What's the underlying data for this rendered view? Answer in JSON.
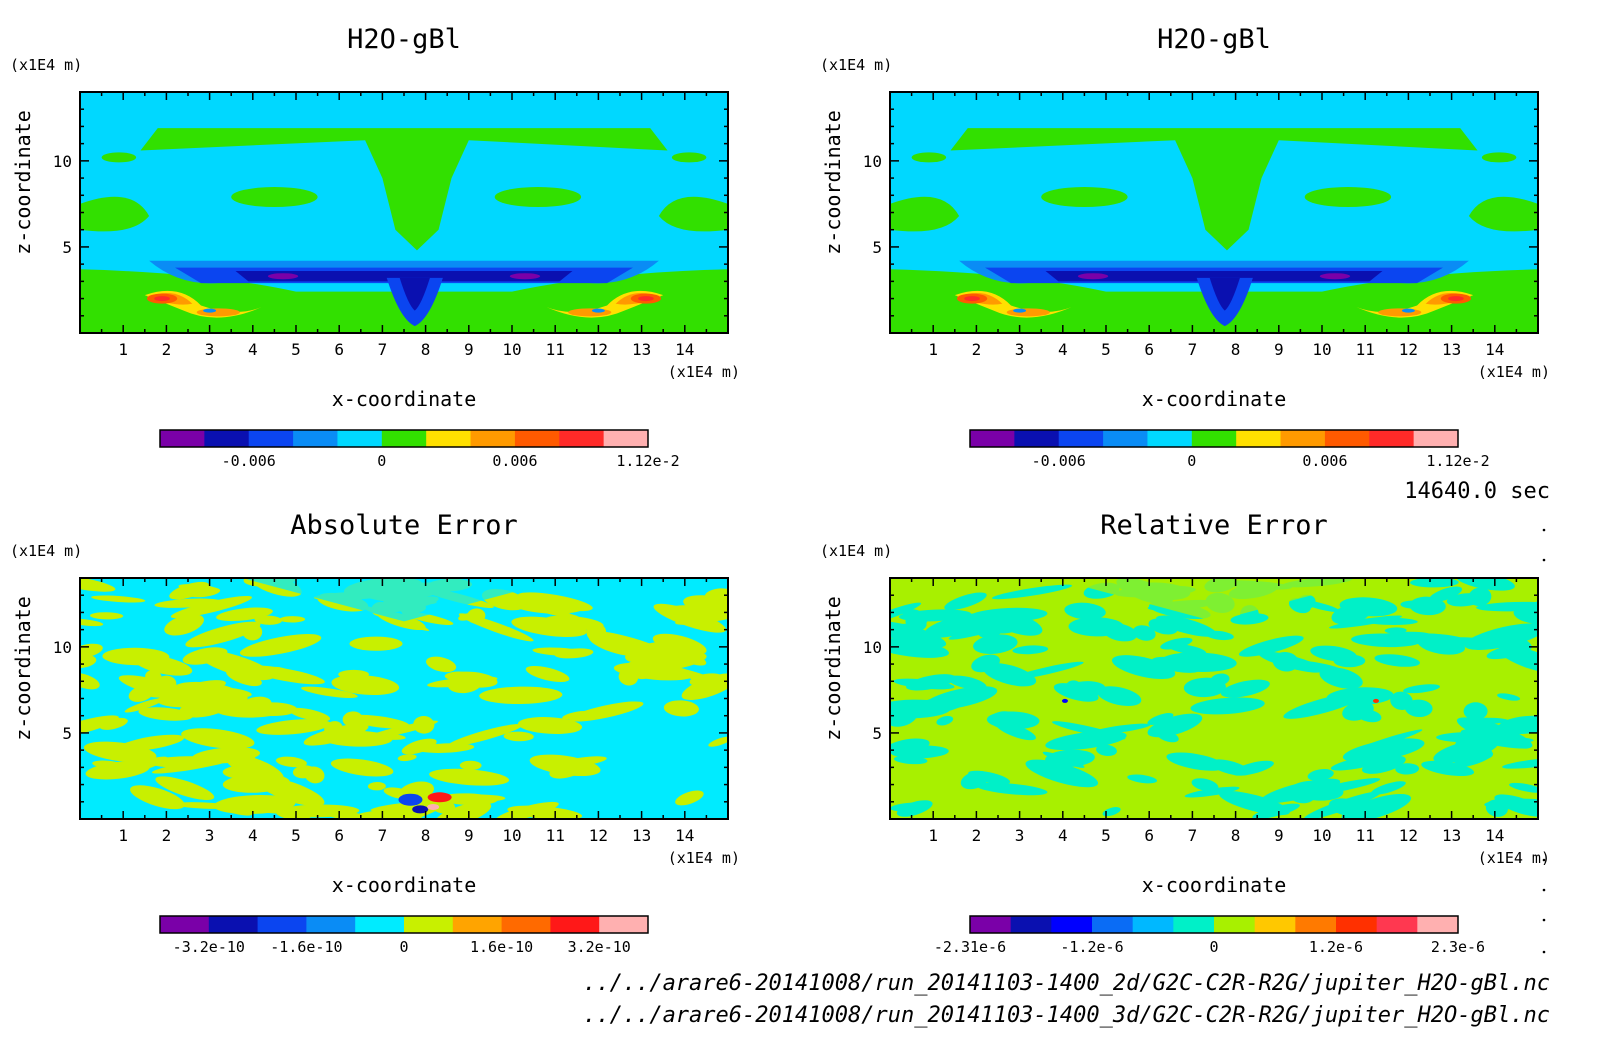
{
  "figure": {
    "time_label": "14640.0 sec",
    "source_files": [
      "../../arare6-20141008/run_20141103-1400_2d/G2C-C2R-R2G/jupiter_H2O-gBl.nc",
      "../../arare6-20141008/run_20141103-1400_3d/G2C-C2R-R2G/jupiter_H2O-gBl.nc"
    ]
  },
  "chart_data": [
    {
      "type": "heatmap",
      "title": "H2O-gBl",
      "xlabel": "x-coordinate",
      "ylabel": "z-coordinate",
      "x_unit": "(x1E4 m)",
      "y_unit": "(x1E4 m)",
      "xlim": [
        0,
        15
      ],
      "ylim": [
        0,
        14
      ],
      "x_ticks": [
        1,
        2,
        3,
        4,
        5,
        6,
        7,
        8,
        9,
        10,
        11,
        12,
        13,
        14
      ],
      "y_ticks": [
        5,
        10
      ],
      "pattern": "field",
      "colors": [
        "#7a00a8",
        "#0a10b0",
        "#0b45f0",
        "#0a8cf5",
        "#00d8ff",
        "#32e000",
        "#ffe000",
        "#ff9a00",
        "#ff5a00",
        "#ff2a28",
        "#ffb0b0"
      ],
      "colorbar_labels": [
        {
          "value": "-0.006",
          "pos": 2
        },
        {
          "value": "0",
          "pos": 5
        },
        {
          "value": "0.006",
          "pos": 8
        },
        {
          "value": "1.12e-2",
          "pos": 11
        }
      ]
    },
    {
      "type": "heatmap",
      "title": "H2O-gBl",
      "xlabel": "x-coordinate",
      "ylabel": "z-coordinate",
      "x_unit": "(x1E4 m)",
      "y_unit": "(x1E4 m)",
      "xlim": [
        0,
        15
      ],
      "ylim": [
        0,
        14
      ],
      "x_ticks": [
        1,
        2,
        3,
        4,
        5,
        6,
        7,
        8,
        9,
        10,
        11,
        12,
        13,
        14
      ],
      "y_ticks": [
        5,
        10
      ],
      "pattern": "field",
      "colors": [
        "#7a00a8",
        "#0a10b0",
        "#0b45f0",
        "#0a8cf5",
        "#00d8ff",
        "#32e000",
        "#ffe000",
        "#ff9a00",
        "#ff5a00",
        "#ff2a28",
        "#ffb0b0"
      ],
      "colorbar_labels": [
        {
          "value": "-0.006",
          "pos": 2
        },
        {
          "value": "0",
          "pos": 5
        },
        {
          "value": "0.006",
          "pos": 8
        },
        {
          "value": "1.12e-2",
          "pos": 11
        }
      ]
    },
    {
      "type": "heatmap",
      "title": "Absolute Error",
      "xlabel": "x-coordinate",
      "ylabel": "z-coordinate",
      "x_unit": "(x1E4 m)",
      "y_unit": "(x1E4 m)",
      "xlim": [
        0,
        15
      ],
      "ylim": [
        0,
        14
      ],
      "x_ticks": [
        1,
        2,
        3,
        4,
        5,
        6,
        7,
        8,
        9,
        10,
        11,
        12,
        13,
        14
      ],
      "y_ticks": [
        5,
        10
      ],
      "pattern": "abs",
      "colors": [
        "#7a00a8",
        "#0a10b0",
        "#0b45f0",
        "#0a8cf5",
        "#00ebff",
        "#c8f000",
        "#ffa400",
        "#ff6a00",
        "#ff1818",
        "#ffb0b0"
      ],
      "colorbar_labels": [
        {
          "value": "-3.2e-10",
          "pos": 1
        },
        {
          "value": "-1.6e-10",
          "pos": 3
        },
        {
          "value": "0",
          "pos": 5
        },
        {
          "value": "1.6e-10",
          "pos": 7
        },
        {
          "value": "3.2e-10",
          "pos": 9
        }
      ]
    },
    {
      "type": "heatmap",
      "title": "Relative Error",
      "xlabel": "x-coordinate",
      "ylabel": "z-coordinate",
      "x_unit": "(x1E4 m)",
      "y_unit": "(x1E4 m)",
      "xlim": [
        0,
        15
      ],
      "ylim": [
        0,
        14
      ],
      "x_ticks": [
        1,
        2,
        3,
        4,
        5,
        6,
        7,
        8,
        9,
        10,
        11,
        12,
        13,
        14
      ],
      "y_ticks": [
        5,
        10
      ],
      "pattern": "rel",
      "colors": [
        "#7a00a8",
        "#0a10b0",
        "#0000ff",
        "#0a6cf5",
        "#00b8ff",
        "#00f0c8",
        "#a8f000",
        "#ffc800",
        "#ff7a00",
        "#ff3000",
        "#ff3850",
        "#ffb0b0"
      ],
      "colorbar_labels": [
        {
          "value": "-2.31e-6",
          "pos": 0
        },
        {
          "value": "-1.2e-6",
          "pos": 3
        },
        {
          "value": "0",
          "pos": 6
        },
        {
          "value": "1.2e-6",
          "pos": 9
        },
        {
          "value": "2.3e-6",
          "pos": 12
        }
      ]
    }
  ]
}
